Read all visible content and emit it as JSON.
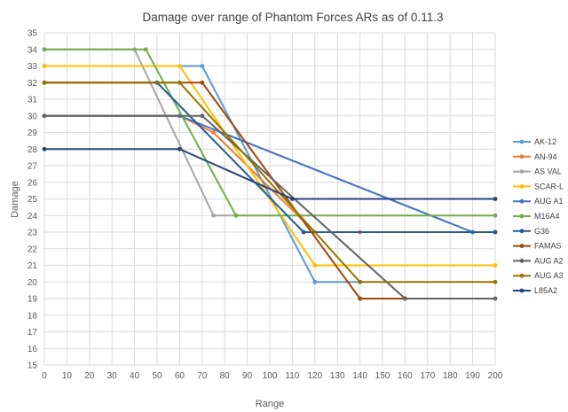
{
  "chart_data": {
    "type": "line",
    "title": "Damage over range of Phantom Forces ARs as of 0.11.3",
    "xlabel": "Range",
    "ylabel": "Damage",
    "xlim": [
      0,
      200
    ],
    "ylim": [
      15,
      35
    ],
    "xticks": [
      0,
      10,
      20,
      30,
      40,
      50,
      60,
      70,
      80,
      90,
      100,
      110,
      120,
      130,
      140,
      150,
      160,
      170,
      180,
      190,
      200
    ],
    "yticks": [
      15,
      16,
      17,
      18,
      19,
      20,
      21,
      22,
      23,
      24,
      25,
      26,
      27,
      28,
      29,
      30,
      31,
      32,
      33,
      34,
      35
    ],
    "grid": true,
    "legend_position": "right",
    "series": [
      {
        "name": "AK-12",
        "color": "#5B9BD5",
        "points": [
          [
            0,
            33
          ],
          [
            70,
            33
          ],
          [
            120,
            20
          ],
          [
            140,
            20
          ]
        ]
      },
      {
        "name": "AN-94",
        "color": "#ED7D31",
        "points": [
          [
            0,
            30
          ],
          [
            60,
            30
          ],
          [
            75,
            29
          ],
          [
            120,
            23
          ],
          [
            140,
            23
          ]
        ]
      },
      {
        "name": "AS VAL",
        "color": "#A5A5A5",
        "points": [
          [
            0,
            34
          ],
          [
            40,
            34
          ],
          [
            75,
            24
          ],
          [
            85,
            24
          ]
        ]
      },
      {
        "name": "SCAR-L",
        "color": "#FFC000",
        "points": [
          [
            0,
            33
          ],
          [
            60,
            33
          ],
          [
            120,
            21
          ],
          [
            200,
            21
          ]
        ]
      },
      {
        "name": "AUG A1",
        "color": "#4472C4",
        "points": [
          [
            0,
            30
          ],
          [
            60,
            30
          ],
          [
            190,
            23
          ],
          [
            200,
            23
          ]
        ]
      },
      {
        "name": "M16A4",
        "color": "#70AD47",
        "points": [
          [
            0,
            34
          ],
          [
            45,
            34
          ],
          [
            85,
            24
          ],
          [
            200,
            24
          ]
        ]
      },
      {
        "name": "G36",
        "color": "#255E91",
        "points": [
          [
            0,
            32
          ],
          [
            50,
            32
          ],
          [
            115,
            23
          ],
          [
            200,
            23
          ]
        ]
      },
      {
        "name": "FAMAS",
        "color": "#9E480E",
        "points": [
          [
            0,
            32
          ],
          [
            70,
            32
          ],
          [
            140,
            19
          ],
          [
            160,
            19
          ]
        ]
      },
      {
        "name": "AUG A2",
        "color": "#636363",
        "points": [
          [
            0,
            30
          ],
          [
            70,
            30
          ],
          [
            160,
            19
          ],
          [
            200,
            19
          ]
        ]
      },
      {
        "name": "AUG A3",
        "color": "#997300",
        "points": [
          [
            0,
            32
          ],
          [
            60,
            32
          ],
          [
            140,
            20
          ],
          [
            200,
            20
          ]
        ]
      },
      {
        "name": "L85A2",
        "color": "#264478",
        "points": [
          [
            0,
            28
          ],
          [
            60,
            28
          ],
          [
            110,
            25
          ],
          [
            200,
            25
          ]
        ]
      }
    ]
  }
}
